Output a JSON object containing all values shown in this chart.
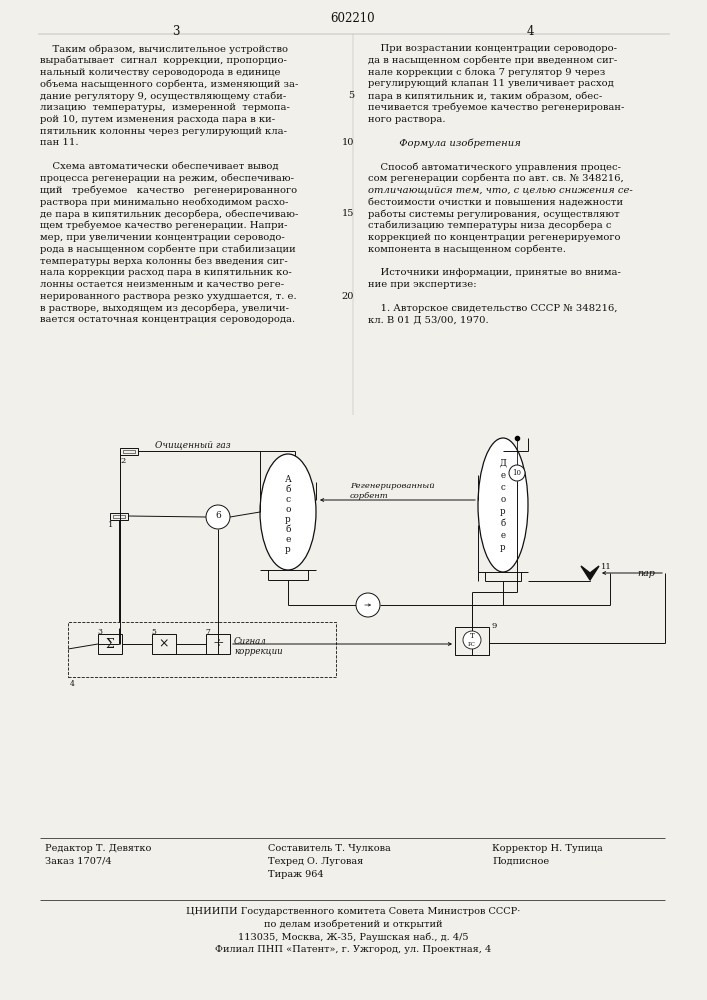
{
  "bg_color": "#f2f0eb",
  "page_number_center": "602210",
  "page_left": "3",
  "page_right": "4",
  "left_col_text": [
    "    Таким образом, вычислительное устройство",
    "вырабатывает  сигнал  коррекции, пропорцио-",
    "нальный количеству сероводорода в единице",
    "объема насыщенного сорбента, изменяющий за-",
    "дание регулятору 9, осуществляющему стаби-",
    "лизацию  температуры,  измеренной  термопа-",
    "рой 10, путем изменения расхода пара в ки-",
    "пятильник колонны через регулирующий кла-",
    "пан 11.",
    "",
    "    Схема автоматически обеспечивает вывод",
    "процесса регенерации на режим, обеспечиваю-",
    "щий   требуемое   качество   регенерированного",
    "раствора при минимально необходимом расхо-",
    "де пара в кипятильник десорбера, обеспечиваю-",
    "щем требуемое качество регенерации. Напри-",
    "мер, при увеличении концентрации сероводо-",
    "рода в насыщенном сорбенте при стабилизации",
    "температуры верха колонны без введения сиг-",
    "нала коррекции расход пара в кипятильник ко-",
    "лонны остается неизменным и качество реге-",
    "нерированного раствора резко ухудшается, т. е.",
    "в растворе, выходящем из десорбера, увеличи-",
    "вается остаточная концентрация сероводорода."
  ],
  "right_col_text": [
    "    При возрастании концентрации сероводоро-",
    "да в насыщенном сорбенте при введенном сиг-",
    "нале коррекции с блока 7 регулятор 9 через",
    "регулирующий клапан 11 увеличивает расход",
    "пара в кипятильник и, таким образом, обес-",
    "печивается требуемое качество регенерирован-",
    "ного раствора.",
    "",
    "          Формула изобретения",
    "",
    "    Способ автоматического управления процес-",
    "сом регенерации сорбента по авт. св. № 348216,",
    "отличающийся тем, что, с целью снижения се-",
    "бестоимости очистки и повышения надежности",
    "работы системы регулирования, осуществляют",
    "стабилизацию температуры низа десорбера с",
    "коррекцией по концентрации регенерируемого",
    "компонента в насыщенном сорбенте.",
    "",
    "    Источники информации, принятые во внима-",
    "ние при экспертизе:",
    "",
    "    1. Авторское свидетельство СССР № 348216,",
    "кл. В 01 Д 53/00, 1970."
  ],
  "margin_numbers": {
    "4": "5",
    "8": "10",
    "14": "15",
    "21": "20"
  },
  "footer_left": [
    "Редактор Т. Девятко",
    "Заказ 1707/4"
  ],
  "footer_center": [
    "Составитель Т. Чулкова",
    "Техред О. Луговая",
    "Тираж 964"
  ],
  "footer_right": [
    "Корректор Н. Тупица",
    "Подписное"
  ],
  "footer_bottom": [
    "ЦНИИПИ Государственного комитета Совета Министров СССР·",
    "по делам изобретений и открытий",
    "113035, Москва, Ж-35, Раушская наб., д. 4/5",
    "Филиал ПНП «Патент», г. Ужгород, ул. Проектная, 4"
  ]
}
